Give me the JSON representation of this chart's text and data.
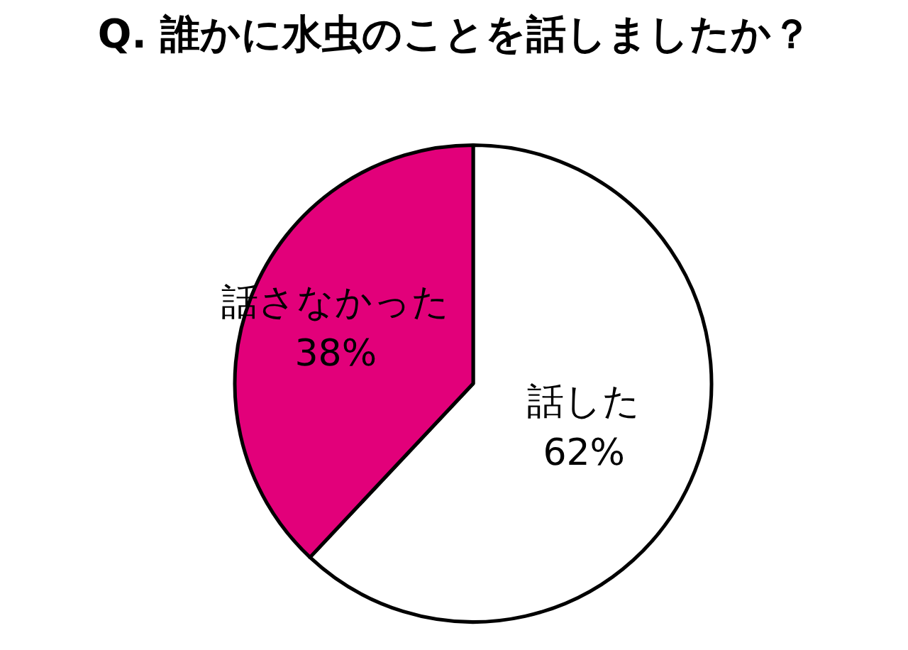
{
  "chart_data": {
    "type": "pie",
    "title": "Q. 誰かに水虫のことを話しましたか？",
    "categories": [
      "話した",
      "話さなかった"
    ],
    "values": [
      62,
      38
    ],
    "colors": [
      "#ffffff",
      "#e2007a"
    ],
    "value_labels": [
      "62%",
      "38%"
    ]
  }
}
